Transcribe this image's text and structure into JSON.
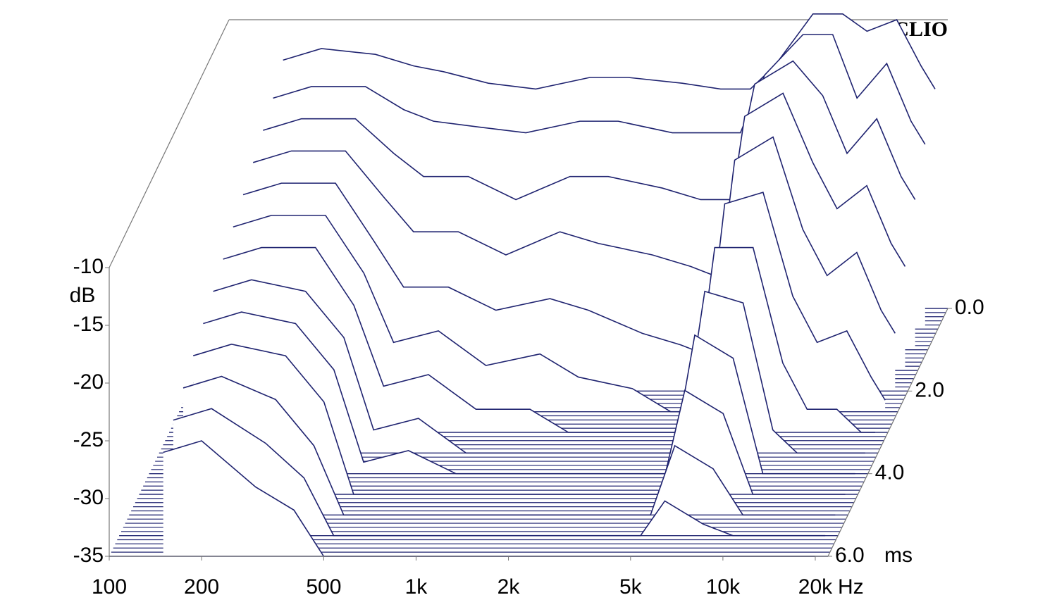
{
  "chart_data": {
    "type": "waterfall",
    "brand": "CLIO",
    "x_label": "Hz",
    "y_label": "dB",
    "z_label": "ms",
    "color": "#1f2370",
    "log_x": true,
    "x": [
      150,
      200,
      300,
      400,
      500,
      700,
      1000,
      1500,
      2000,
      3000,
      4000,
      5000,
      6000,
      8000,
      10000,
      12000,
      15000,
      18000,
      20000
    ],
    "xlim": [
      100,
      22000
    ],
    "xticks": [
      100,
      200,
      500,
      {
        "value": 1000,
        "label": "1k"
      },
      {
        "value": 2000,
        "label": "2k"
      },
      {
        "value": 5000,
        "label": "5k"
      },
      {
        "value": 10000,
        "label": "10k"
      },
      {
        "value": 20000,
        "label": "20k"
      }
    ],
    "ylim": [
      -35,
      -10
    ],
    "yticks": [
      -10,
      -15,
      -20,
      -25,
      -30,
      -35
    ],
    "zlim": [
      0,
      6
    ],
    "zticks": [
      {
        "value": 0,
        "label": "0.0"
      },
      {
        "value": 2,
        "label": "2.0"
      },
      {
        "value": 4,
        "label": "4.0"
      },
      {
        "value": 6,
        "label": "6.0"
      }
    ],
    "slices": [
      {
        "time": 0,
        "values": [
          -13.5,
          -12.5,
          -13,
          -14,
          -14.5,
          -15.5,
          -16,
          -15,
          -15,
          -15.5,
          -16,
          -16,
          -14,
          -9.5,
          -9.5,
          -11,
          -10,
          -14,
          -16
        ]
      },
      {
        "time": 0.5,
        "values": [
          -15,
          -14,
          -14,
          -16,
          -17,
          -17.5,
          -18,
          -17,
          -17,
          -18,
          -18,
          -18,
          -13,
          -9.5,
          -9.5,
          -15,
          -12,
          -17,
          -19
        ]
      },
      {
        "time": 1,
        "values": [
          -16,
          -15,
          -15,
          -18,
          -20,
          -20,
          -22,
          -20,
          -20,
          -21,
          -22,
          -22,
          -12,
          -10,
          -13,
          -18,
          -15,
          -20,
          -22
        ]
      },
      {
        "time": 1.5,
        "values": [
          -17,
          -16,
          -16,
          -20,
          -23,
          -23,
          -25,
          -23,
          -24,
          -25,
          -26,
          -27,
          -13,
          -11,
          -17,
          -21,
          -19,
          -24,
          -26
        ]
      },
      {
        "time": 2,
        "values": [
          -18,
          -17,
          -17,
          -22,
          -26,
          -26,
          -28,
          -27,
          -28,
          -30,
          -31,
          -32,
          -15,
          -13,
          -21,
          -25,
          -23,
          -28,
          -30
        ]
      },
      {
        "time": 2.5,
        "values": [
          -19,
          -18,
          -18,
          -23,
          -29,
          -28,
          -31,
          -30,
          -32,
          -33,
          -35,
          -35,
          -17,
          -16,
          -25,
          -29,
          -28,
          -32,
          -34
        ]
      },
      {
        "time": 3,
        "values": [
          -20,
          -19,
          -19,
          -24,
          -31,
          -30,
          -33,
          -33,
          -35,
          -35,
          -35,
          -35,
          -19,
          -19,
          -29,
          -33,
          -33,
          -35,
          -35
        ]
      },
      {
        "time": 3.5,
        "values": [
          -21,
          -20,
          -21,
          -25,
          -33,
          -32,
          -35,
          -35,
          -35,
          -35,
          -35,
          -35,
          -21,
          -22,
          -33,
          -35,
          -35,
          -35,
          -35
        ]
      },
      {
        "time": 4,
        "values": [
          -22,
          -21,
          -22,
          -26,
          -34,
          -33,
          -35,
          -35,
          -35,
          -35,
          -35,
          -35,
          -23,
          -25,
          -35,
          -35,
          -35,
          -35,
          -35
        ]
      },
      {
        "time": 4.5,
        "values": [
          -23,
          -22,
          -23,
          -27,
          -35,
          -35,
          -35,
          -35,
          -35,
          -35,
          -35,
          -35,
          -26,
          -28,
          -35,
          -35,
          -35,
          -35,
          -35
        ]
      },
      {
        "time": 5,
        "values": [
          -24,
          -23,
          -25,
          -29,
          -35,
          -35,
          -35,
          -35,
          -35,
          -35,
          -35,
          -35,
          -29,
          -31,
          -35,
          -35,
          -35,
          -35,
          -35
        ]
      },
      {
        "time": 5.5,
        "values": [
          -25,
          -24,
          -27,
          -30,
          -35,
          -35,
          -35,
          -35,
          -35,
          -35,
          -35,
          -35,
          -32,
          -34,
          -35,
          -35,
          -35,
          -35,
          -35
        ]
      },
      {
        "time": 6,
        "values": [
          -26,
          -25,
          -29,
          -31,
          -35,
          -35,
          -35,
          -35,
          -35,
          -35,
          -35,
          -35,
          -35,
          -35,
          -35,
          -35,
          -35,
          -35,
          -35
        ]
      }
    ]
  }
}
